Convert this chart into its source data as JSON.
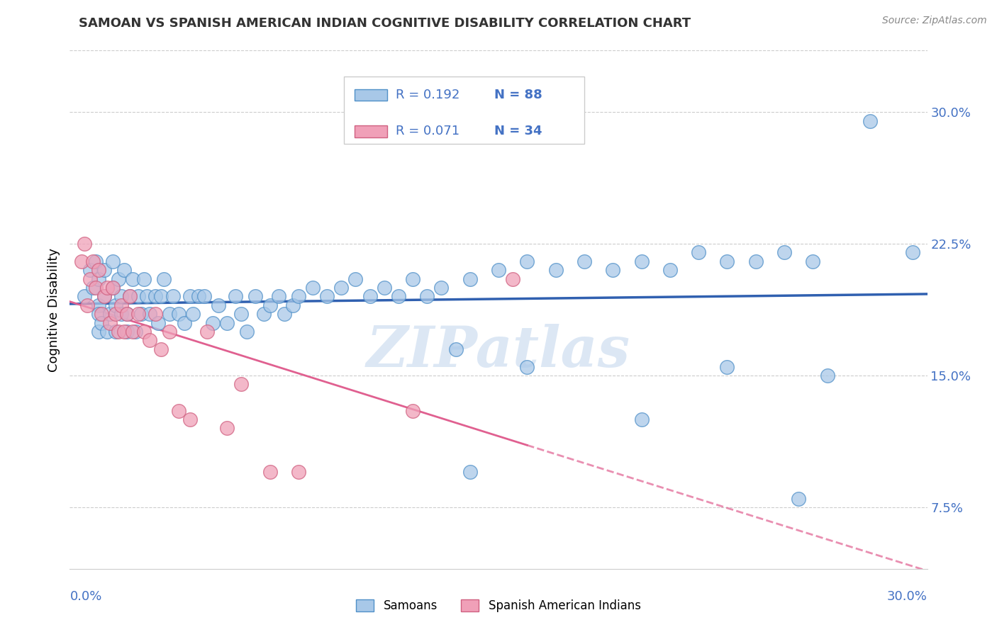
{
  "title": "SAMOAN VS SPANISH AMERICAN INDIAN COGNITIVE DISABILITY CORRELATION CHART",
  "source": "Source: ZipAtlas.com",
  "ylabel": "Cognitive Disability",
  "yticks_labels": [
    "7.5%",
    "15.0%",
    "22.5%",
    "30.0%"
  ],
  "ytick_vals": [
    0.075,
    0.15,
    0.225,
    0.3
  ],
  "xlim": [
    0.0,
    0.3
  ],
  "ylim": [
    0.04,
    0.335
  ],
  "samoan_color_fill": "#a8c8e8",
  "samoan_color_edge": "#5090c8",
  "spanish_color_fill": "#f0a0b8",
  "spanish_color_edge": "#d06080",
  "line_samoan_color": "#3060b0",
  "line_spanish_color": "#e06090",
  "watermark": "ZIPatlas",
  "samoan_x": [
    0.005,
    0.007,
    0.008,
    0.009,
    0.01,
    0.01,
    0.01,
    0.01,
    0.011,
    0.012,
    0.012,
    0.013,
    0.014,
    0.015,
    0.015,
    0.016,
    0.016,
    0.017,
    0.018,
    0.018,
    0.019,
    0.02,
    0.02,
    0.021,
    0.022,
    0.023,
    0.024,
    0.025,
    0.026,
    0.027,
    0.028,
    0.03,
    0.031,
    0.032,
    0.033,
    0.035,
    0.036,
    0.038,
    0.04,
    0.042,
    0.043,
    0.045,
    0.047,
    0.05,
    0.052,
    0.055,
    0.058,
    0.06,
    0.062,
    0.065,
    0.068,
    0.07,
    0.073,
    0.075,
    0.078,
    0.08,
    0.085,
    0.09,
    0.095,
    0.1,
    0.105,
    0.11,
    0.115,
    0.12,
    0.125,
    0.13,
    0.135,
    0.14,
    0.15,
    0.16,
    0.17,
    0.18,
    0.19,
    0.2,
    0.21,
    0.22,
    0.23,
    0.24,
    0.25,
    0.26,
    0.14,
    0.16,
    0.2,
    0.23,
    0.255,
    0.265,
    0.28,
    0.295
  ],
  "samoan_y": [
    0.195,
    0.21,
    0.2,
    0.215,
    0.175,
    0.19,
    0.205,
    0.185,
    0.18,
    0.195,
    0.21,
    0.175,
    0.185,
    0.2,
    0.215,
    0.19,
    0.175,
    0.205,
    0.185,
    0.195,
    0.21,
    0.175,
    0.185,
    0.195,
    0.205,
    0.175,
    0.195,
    0.185,
    0.205,
    0.195,
    0.185,
    0.195,
    0.18,
    0.195,
    0.205,
    0.185,
    0.195,
    0.185,
    0.18,
    0.195,
    0.185,
    0.195,
    0.195,
    0.18,
    0.19,
    0.18,
    0.195,
    0.185,
    0.175,
    0.195,
    0.185,
    0.19,
    0.195,
    0.185,
    0.19,
    0.195,
    0.2,
    0.195,
    0.2,
    0.205,
    0.195,
    0.2,
    0.195,
    0.205,
    0.195,
    0.2,
    0.165,
    0.205,
    0.21,
    0.215,
    0.21,
    0.215,
    0.21,
    0.215,
    0.21,
    0.22,
    0.215,
    0.215,
    0.22,
    0.215,
    0.095,
    0.155,
    0.125,
    0.155,
    0.08,
    0.15,
    0.295,
    0.22
  ],
  "spanish_x": [
    0.004,
    0.005,
    0.006,
    0.007,
    0.008,
    0.009,
    0.01,
    0.011,
    0.012,
    0.013,
    0.014,
    0.015,
    0.016,
    0.017,
    0.018,
    0.019,
    0.02,
    0.021,
    0.022,
    0.024,
    0.026,
    0.028,
    0.03,
    0.032,
    0.035,
    0.038,
    0.042,
    0.048,
    0.055,
    0.06,
    0.07,
    0.08,
    0.12,
    0.155
  ],
  "spanish_y": [
    0.215,
    0.225,
    0.19,
    0.205,
    0.215,
    0.2,
    0.21,
    0.185,
    0.195,
    0.2,
    0.18,
    0.2,
    0.185,
    0.175,
    0.19,
    0.175,
    0.185,
    0.195,
    0.175,
    0.185,
    0.175,
    0.17,
    0.185,
    0.165,
    0.175,
    0.13,
    0.125,
    0.175,
    0.12,
    0.145,
    0.095,
    0.095,
    0.13,
    0.205
  ]
}
